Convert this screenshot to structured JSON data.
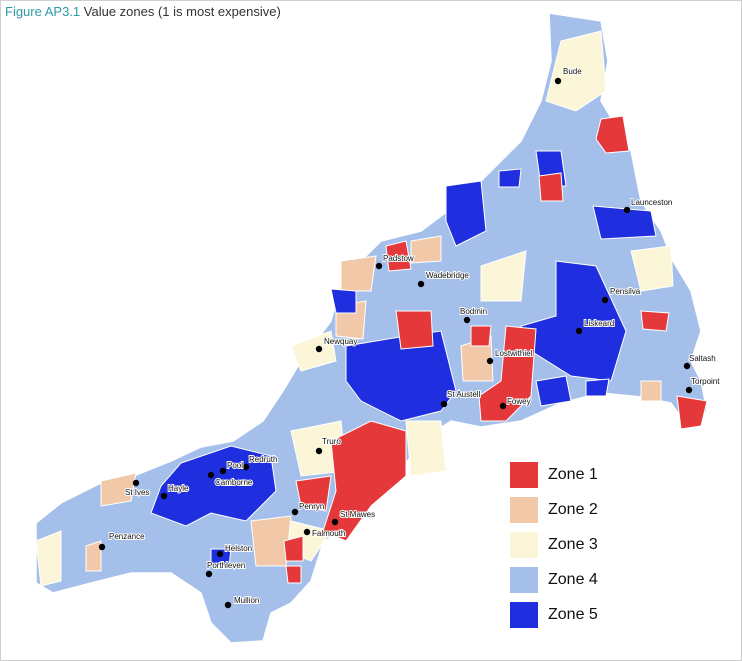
{
  "title": {
    "figure": "Figure AP3.1",
    "caption": "Value zones (1 is most expensive)"
  },
  "towns": [
    {
      "label": "Bude"
    },
    {
      "label": "Launceston"
    },
    {
      "label": "Padstow"
    },
    {
      "label": "Wadebridge"
    },
    {
      "label": "Pensilva"
    },
    {
      "label": "Bodmin"
    },
    {
      "label": "Liskeard"
    },
    {
      "label": "Newquay"
    },
    {
      "label": "Lostwithiel"
    },
    {
      "label": "Saltash"
    },
    {
      "label": "Torpoint"
    },
    {
      "label": "St Austell"
    },
    {
      "label": "Fowey"
    },
    {
      "label": "Truro"
    },
    {
      "label": "Redruth"
    },
    {
      "label": "Pool"
    },
    {
      "label": "Camborne"
    },
    {
      "label": "St Ives"
    },
    {
      "label": "Hayle"
    },
    {
      "label": "Penryn"
    },
    {
      "label": "St Mawes"
    },
    {
      "label": "Falmouth"
    },
    {
      "label": "Penzance"
    },
    {
      "label": "Helston"
    },
    {
      "label": "Porthleven"
    },
    {
      "label": "Mullion"
    }
  ],
  "legend": [
    {
      "label": "Zone 1",
      "color": "#e5383b"
    },
    {
      "label": "Zone 2",
      "color": "#f2c9a8"
    },
    {
      "label": "Zone 3",
      "color": "#fcf6d8"
    },
    {
      "label": "Zone 4",
      "color": "#a3bfea"
    },
    {
      "label": "Zone 5",
      "color": "#1f2fe0"
    }
  ]
}
